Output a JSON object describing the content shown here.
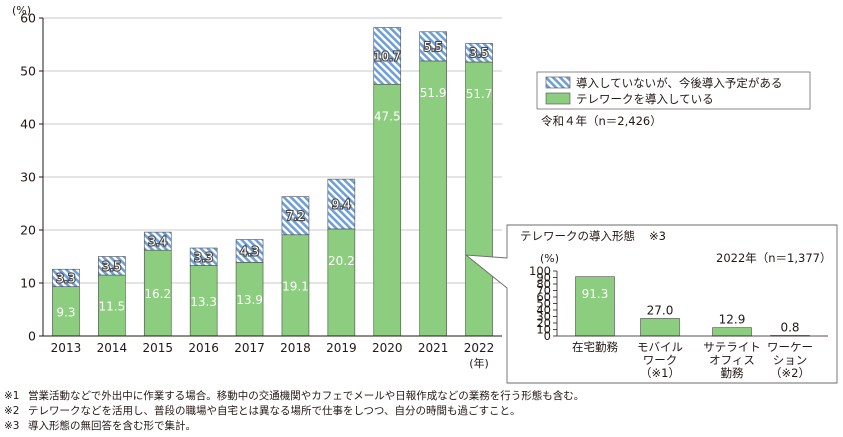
{
  "colors": {
    "telework_fill": "#8ccd7f",
    "planned_stripe": "#6f9fd8",
    "axis": "#231815",
    "grid": "#c9c9c9",
    "label_white": "#ffffff"
  },
  "chart_data": [
    {
      "type": "bar",
      "stacked": true,
      "categories": [
        "2013",
        "2014",
        "2015",
        "2016",
        "2017",
        "2018",
        "2019",
        "2020",
        "2021",
        "2022"
      ],
      "x_unit_label": "(年)",
      "y_unit_label": "(%)",
      "ylim": [
        0,
        60
      ],
      "yticks": [
        0,
        10,
        20,
        30,
        40,
        50,
        60
      ],
      "series": [
        {
          "name": "テレワークを導入している",
          "values": [
            9.3,
            11.5,
            16.2,
            13.3,
            13.9,
            19.1,
            20.2,
            47.5,
            51.9,
            51.7
          ],
          "labels": [
            "9.3",
            "11.5",
            "16.2",
            "13.3",
            "13.9",
            "19.1",
            "20.2",
            "47.5",
            "51.9",
            "51.7"
          ]
        },
        {
          "name": "導入していないが、今後導入予定がある",
          "values": [
            3.3,
            3.5,
            3.4,
            3.3,
            4.3,
            7.2,
            9.4,
            10.7,
            5.5,
            3.5
          ],
          "labels": [
            "3.3",
            "3.5",
            "3.4",
            "3.3",
            "4.3",
            "7.2",
            "9.4",
            "10.7",
            "5.5",
            "3.5"
          ]
        }
      ],
      "legend_note": "令和４年（n＝2,426）",
      "grid": true
    },
    {
      "type": "bar",
      "title": "テレワークの導入形態",
      "title_note": "※3",
      "subtitle": "2022年（n＝1,377）",
      "y_unit_label": "(%)",
      "ylim": [
        0,
        100
      ],
      "yticks": [
        0,
        10,
        20,
        30,
        40,
        50,
        60,
        70,
        80,
        90,
        100
      ],
      "categories": [
        [
          "在宅勤務"
        ],
        [
          "モバイル",
          "ワーク",
          "（※1）"
        ],
        [
          "サテライト",
          "オフィス",
          "勤務"
        ],
        [
          "ワーケー",
          "ション",
          "（※2）"
        ]
      ],
      "values": [
        91.3,
        27.0,
        12.9,
        0.8
      ],
      "labels": [
        "91.3",
        "27.0",
        "12.9",
        "0.8"
      ]
    }
  ],
  "notes": [
    {
      "mark": "※1",
      "text": "営業活動などで外出中に作業する場合。移動中の交通機関やカフェでメールや日報作成などの業務を行う形態も含む。"
    },
    {
      "mark": "※2",
      "text": "テレワークなどを活用し、普段の職場や自宅とは異なる場所で仕事をしつつ、自分の時間も過ごすこと。"
    },
    {
      "mark": "※3",
      "text": "導入形態の無回答を含む形で集計。"
    }
  ]
}
